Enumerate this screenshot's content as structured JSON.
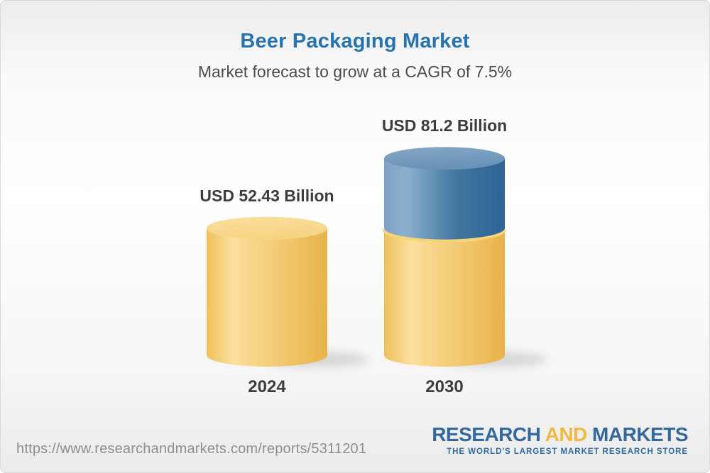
{
  "header": {
    "title": "Beer Packaging Market",
    "subtitle": "Market forecast to grow at a CAGR of 7.5%"
  },
  "chart_data": {
    "type": "bar",
    "variant": "3d cylinder columns, no axes, data labels above bars",
    "categories": [
      "2024",
      "2030"
    ],
    "values": [
      52.43,
      81.2
    ],
    "value_unit": "USD Billion",
    "labels": [
      "USD 52.43 Billion",
      "USD 81.2 Billion"
    ],
    "series": [
      {
        "name": "base value (2024 level)",
        "color": "#f3c96c",
        "values": [
          52.43,
          52.43
        ]
      },
      {
        "name": "forecast growth by 2030",
        "color": "#3b73a5",
        "values": [
          0,
          28.77
        ]
      }
    ],
    "cagr_pct": 7.5,
    "legend": "none",
    "grid": false
  },
  "footer": {
    "url": "https://www.researchandmarkets.com/reports/5311201",
    "logo": {
      "word1": "RESEARCH",
      "word2": "AND",
      "word3": "MARKETS",
      "tagline": "THE WORLD'S LARGEST MARKET RESEARCH STORE"
    }
  },
  "colors": {
    "title_blue": "#2673b0",
    "subtitle_gray": "#4c4c4c",
    "text_dark": "#3d3d3d",
    "url_gray": "#8e8e8e",
    "logo_blue": "#33699e",
    "logo_gold": "#f1b845",
    "bar_yellow": "#f3c96c",
    "bar_blue": "#3b73a5"
  }
}
